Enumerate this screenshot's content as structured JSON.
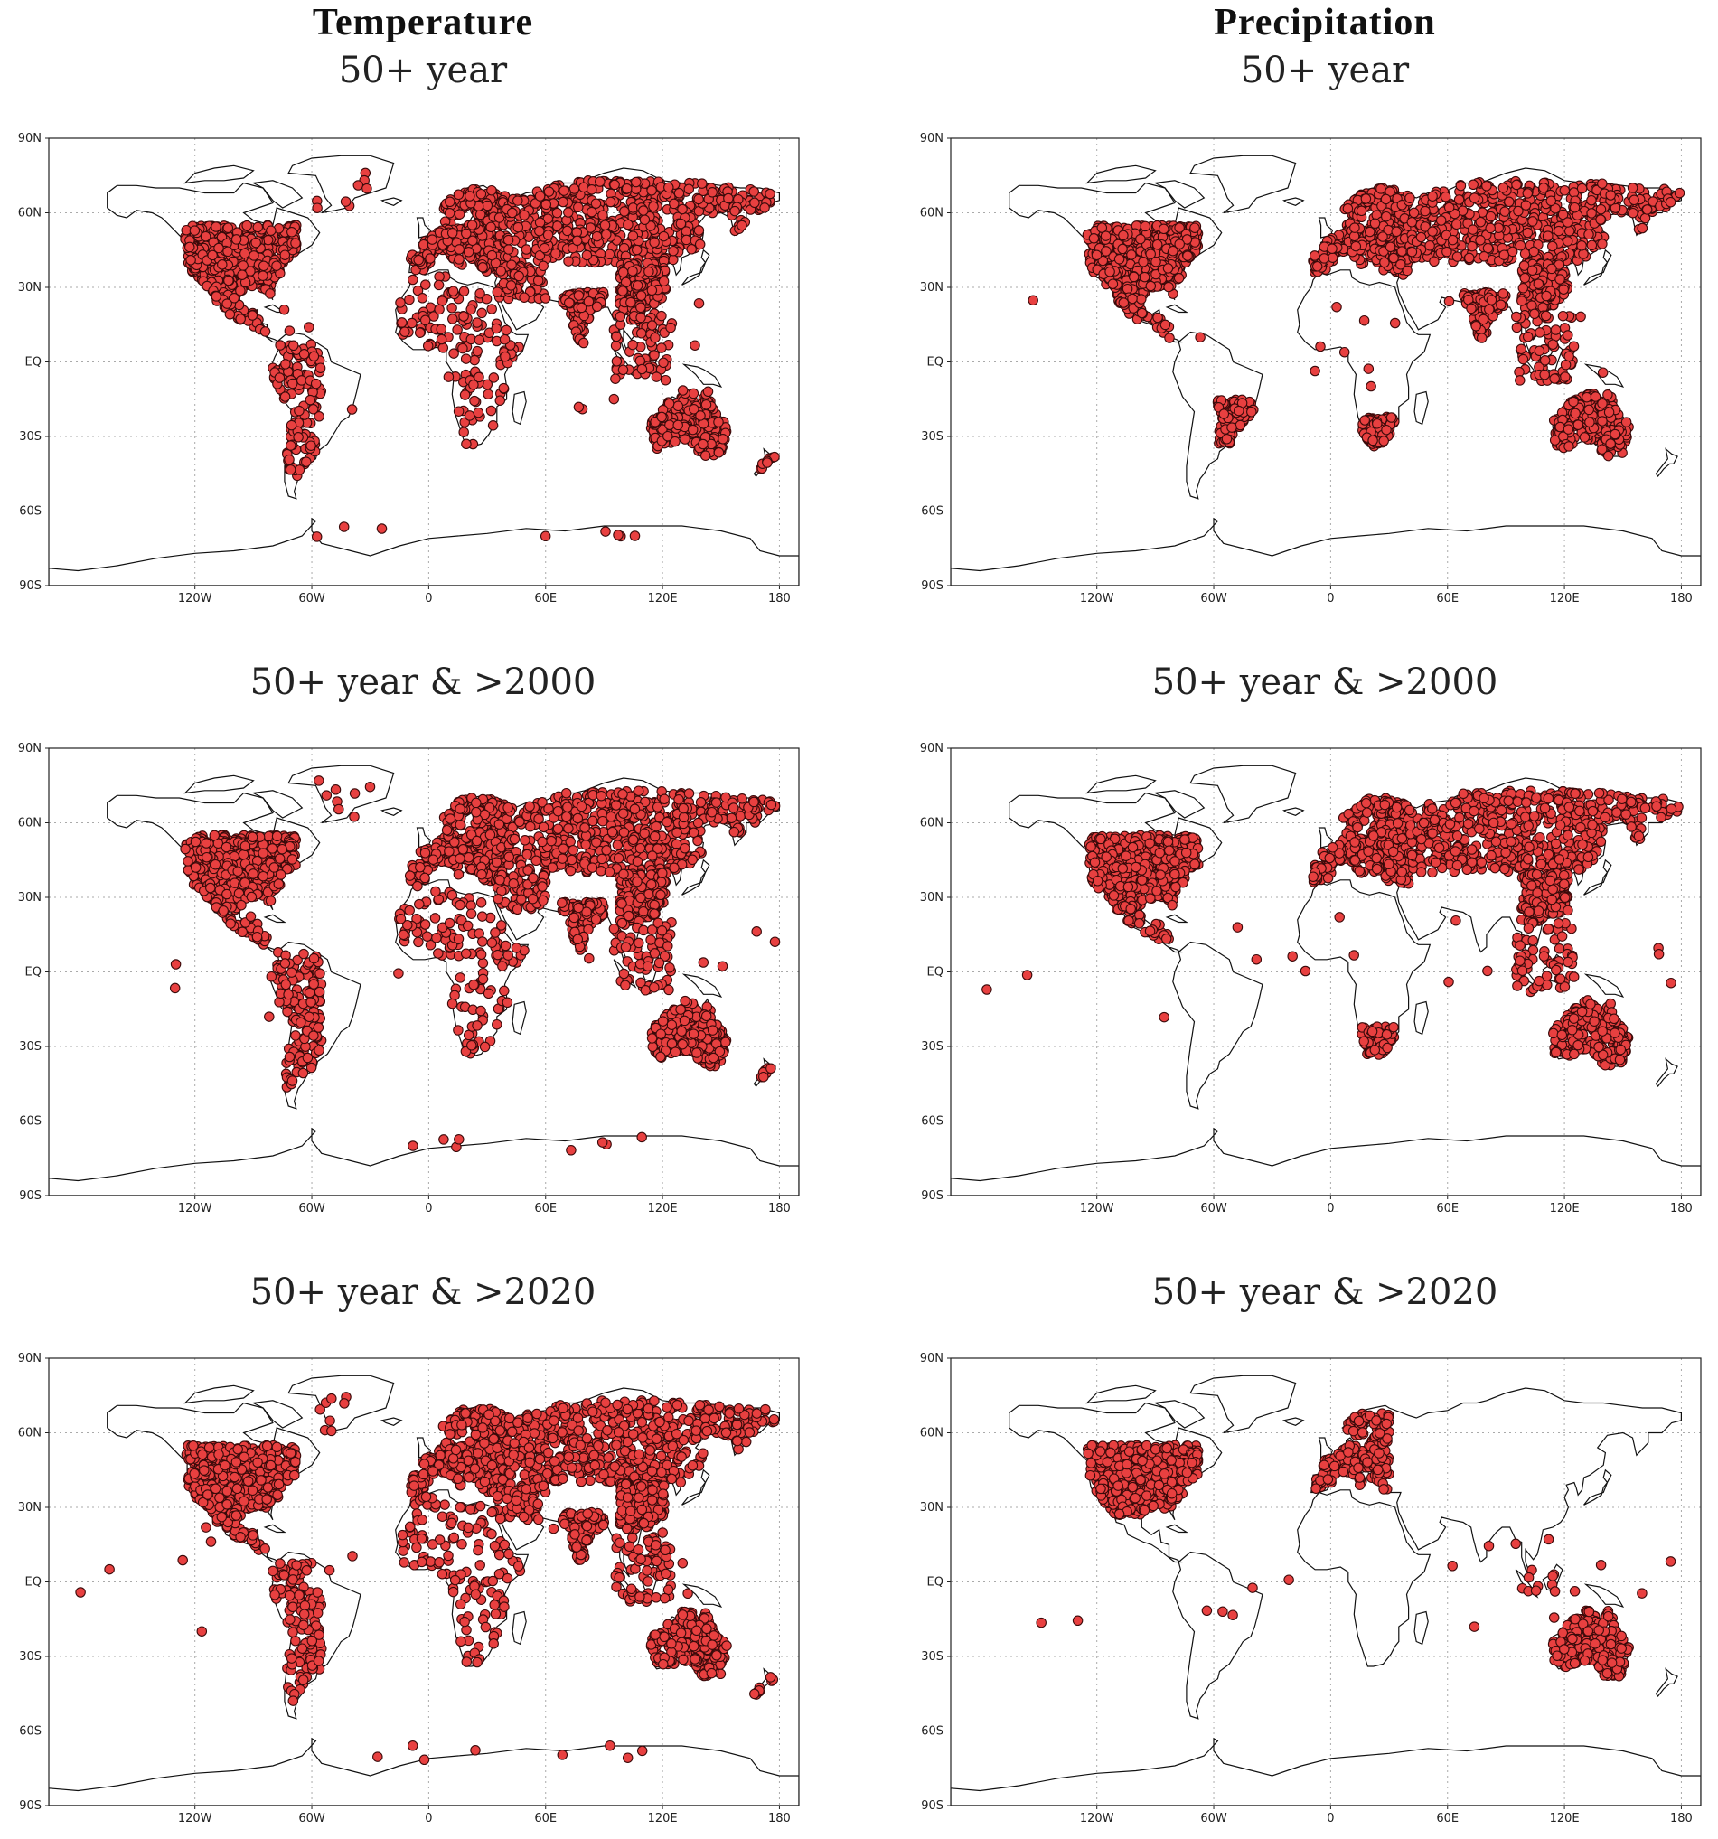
{
  "columns": [
    {
      "title": "Temperature",
      "subtitle": "50+ year"
    },
    {
      "title": "Precipitation",
      "subtitle": "50+ year"
    }
  ],
  "row_titles": [
    "50+ year & >2000",
    "50+ year & >2020"
  ],
  "axes": {
    "lat_labels": [
      "90N",
      "60N",
      "30N",
      "EQ",
      "30S",
      "60S",
      "90S"
    ],
    "lon_labels": [
      "120W",
      "60W",
      "0",
      "60E",
      "120E",
      "180"
    ]
  },
  "colors": {
    "station_fill": "#e84040",
    "station_edge": "#3a0a0a",
    "coast": "#111111",
    "grid": "#aaaaaa"
  },
  "panels": [
    {
      "variable": "Temperature",
      "filter": "50+ year",
      "regions": [
        "north-america",
        "central-america",
        "south-america",
        "europe",
        "russia-asia",
        "middle-east",
        "africa",
        "india",
        "china",
        "southeast-asia",
        "australia",
        "new-zealand",
        "pacific-islands",
        "antarctica-coast",
        "greenland-coast"
      ]
    },
    {
      "variable": "Precipitation",
      "filter": "50+ year",
      "regions": [
        "north-america",
        "central-america",
        "europe",
        "russia-asia",
        "india",
        "china",
        "southeast-asia",
        "australia",
        "brazil-south",
        "south-africa",
        "pacific-islands"
      ]
    },
    {
      "variable": "Temperature",
      "filter": "50+ year & >2000",
      "regions": [
        "north-america",
        "central-america",
        "south-america",
        "europe",
        "russia-asia",
        "middle-east",
        "africa",
        "india",
        "china",
        "southeast-asia",
        "australia",
        "new-zealand",
        "pacific-islands",
        "antarctica-coast",
        "greenland-coast"
      ]
    },
    {
      "variable": "Precipitation",
      "filter": "50+ year & >2000",
      "regions": [
        "north-america",
        "central-america",
        "europe",
        "russia-asia",
        "china",
        "southeast-asia",
        "australia",
        "south-africa",
        "pacific-islands"
      ]
    },
    {
      "variable": "Temperature",
      "filter": "50+ year & >2020",
      "regions": [
        "north-america",
        "central-america",
        "south-america",
        "europe",
        "russia-asia",
        "middle-east",
        "africa",
        "india",
        "china",
        "southeast-asia",
        "australia",
        "new-zealand",
        "pacific-islands",
        "antarctica-coast",
        "greenland-coast"
      ]
    },
    {
      "variable": "Precipitation",
      "filter": "50+ year & >2020",
      "regions": [
        "north-america",
        "europe-west",
        "southeast-asia-sparse",
        "australia",
        "pacific-islands"
      ]
    }
  ]
}
